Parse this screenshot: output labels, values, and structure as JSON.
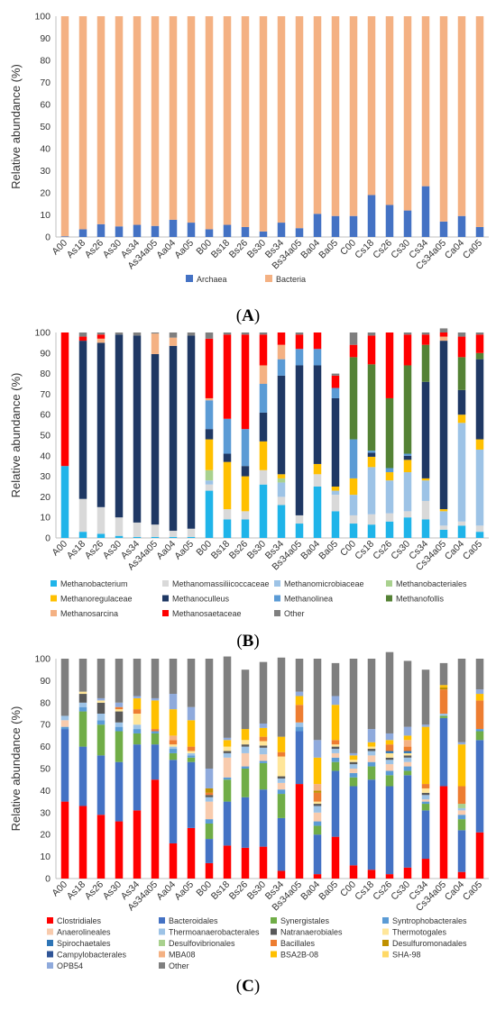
{
  "figure": {
    "colors": {
      "Archaea": "#4472C4",
      "Bacteria": "#F4B183",
      "Methanobacterium": "#1FB4E9",
      "Methanomassiliicoccaceae": "#D9D9D9",
      "Methanomicrobiaceae": "#9DC3E6",
      "Methanobacteriales": "#A9D18E",
      "Methanoregulaceae": "#FFC000",
      "Methanoculleus": "#1F3864",
      "Methanolinea": "#5B9BD5",
      "Methanofollis": "#548235",
      "Methanosarcina": "#F4B183",
      "Methanosaetaceae": "#FF0000",
      "Other": "#7F7F7F",
      "Clostridiales": "#FF0000",
      "Bacteroidales": "#4472C4",
      "Synergistales": "#70AD47",
      "Syntrophobacterales": "#5B9BD5",
      "Anaerolineales": "#F8CBAD",
      "Thermoanaerobacterales": "#9DC3E6",
      "Natranaerobiales": "#595959",
      "Thermotogales": "#FFE699",
      "Spirochaetales": "#2E75B6",
      "Desulfovibrionales": "#A9D18E",
      "Bacillales": "#ED7D31",
      "Desulfuromonadales": "#BF9000",
      "Campylobacterales": "#2F5597",
      "MBA08": "#F4B183",
      "BSA2B-08": "#FFC000",
      "SHA-98": "#FFD966",
      "OPB54": "#8FAADC"
    }
  },
  "chart_data": [
    {
      "panel_label": "(A)",
      "type": "bar",
      "stacked": true,
      "ylabel": "Relative abundance (%)",
      "ylim": [
        0,
        100
      ],
      "yticks": [
        0,
        10,
        20,
        30,
        40,
        50,
        60,
        70,
        80,
        90,
        100
      ],
      "legend_position": "bottom",
      "categories": [
        "A00",
        "As18",
        "As26",
        "As30",
        "As34",
        "As34a05",
        "Aa04",
        "Aa05",
        "B00",
        "Bs18",
        "Bs26",
        "Bs30",
        "Bs34",
        "Bs34a05",
        "Ba04",
        "Ba05",
        "C00",
        "Cs18",
        "Cs26",
        "Cs30",
        "Cs34",
        "Cs34a05",
        "Ca04",
        "Ca05"
      ],
      "series": [
        {
          "name": "Archaea",
          "values": [
            0.3,
            3.5,
            5.8,
            4.8,
            5.5,
            5.0,
            7.8,
            6.5,
            3.5,
            5.5,
            4.5,
            2.5,
            6.5,
            4.0,
            10.5,
            9.5,
            9.5,
            19.0,
            14.5,
            12.0,
            23.0,
            7.0,
            9.5,
            4.5
          ]
        },
        {
          "name": "Bacteria",
          "values": [
            99.7,
            96.5,
            94.2,
            95.2,
            94.5,
            95.0,
            92.2,
            93.5,
            96.5,
            94.5,
            95.5,
            97.5,
            93.5,
            96.0,
            89.5,
            90.5,
            90.5,
            81.0,
            85.5,
            88.0,
            77.0,
            93.0,
            90.5,
            95.5
          ]
        }
      ]
    },
    {
      "panel_label": "(B)",
      "type": "bar",
      "stacked": true,
      "ylabel": "Relative abundance (%)",
      "ylim": [
        0,
        100
      ],
      "yticks": [
        0,
        10,
        20,
        30,
        40,
        50,
        60,
        70,
        80,
        90,
        100
      ],
      "legend_position": "bottom",
      "categories": [
        "A00",
        "As18",
        "As26",
        "As30",
        "As34",
        "As34a05",
        "Aa04",
        "Aa05",
        "B00",
        "Bs18",
        "Bs26",
        "Bs30",
        "Bs34",
        "Bs34a05",
        "Ba04",
        "Ba05",
        "C00",
        "Cs18",
        "Cs26",
        "Cs30",
        "Cs34",
        "Cs34a05",
        "Ca04",
        "Ca05"
      ],
      "series": [
        {
          "name": "Methanobacterium",
          "values": [
            35,
            3,
            2,
            1,
            0.5,
            0.5,
            0.5,
            0.5,
            23,
            9,
            9,
            26,
            16,
            7,
            25,
            13,
            7,
            6.5,
            8,
            10,
            9,
            4,
            6,
            3
          ]
        },
        {
          "name": "Methanomassiliicoccaceae",
          "values": [
            0,
            16,
            13,
            9,
            7,
            6,
            3,
            4,
            3,
            5,
            4,
            7,
            4,
            4,
            6,
            8,
            4,
            5,
            4,
            3,
            9,
            2,
            2,
            3
          ]
        },
        {
          "name": "Methanomicrobiaceae",
          "values": [
            0,
            0,
            0,
            0,
            0,
            0,
            0,
            0,
            2,
            0,
            0,
            0,
            7,
            0,
            0,
            2,
            10,
            23,
            16,
            19,
            10,
            7,
            48,
            37
          ]
        },
        {
          "name": "Methanobacteriales",
          "values": [
            0,
            0,
            0,
            0,
            0,
            0,
            0,
            0,
            5,
            0,
            0,
            0,
            2,
            0,
            0,
            0,
            0,
            0,
            0,
            0,
            0,
            0,
            0,
            0
          ]
        },
        {
          "name": "Methanoregulaceae",
          "values": [
            0,
            0,
            0,
            0,
            0,
            0,
            0,
            0,
            15,
            23,
            17,
            14,
            2,
            0,
            5,
            2,
            8,
            5,
            4,
            6,
            1,
            1,
            4,
            5
          ]
        },
        {
          "name": "Methanoculleus",
          "values": [
            0,
            77,
            80,
            89,
            91,
            83,
            90,
            94,
            5,
            4,
            5,
            14,
            48,
            73,
            48,
            43,
            0,
            2,
            0,
            2,
            47,
            82,
            12,
            39
          ]
        },
        {
          "name": "Methanolinea",
          "values": [
            0,
            0,
            0,
            0,
            0,
            0,
            0,
            0,
            14,
            17,
            18,
            14,
            8,
            8,
            8,
            5,
            19,
            1,
            2,
            1,
            0,
            0,
            0,
            0
          ]
        },
        {
          "name": "Methanofollis",
          "values": [
            0,
            0,
            0,
            0,
            0,
            0,
            0,
            0,
            0,
            0,
            0,
            0,
            0,
            0,
            0,
            0,
            40,
            42,
            34,
            43,
            18,
            0,
            16,
            3
          ]
        },
        {
          "name": "Methanosarcina",
          "values": [
            0,
            0,
            2,
            0,
            0,
            10,
            4,
            0,
            1,
            0,
            0,
            9,
            7,
            0,
            0,
            0,
            0,
            0,
            0,
            0,
            0,
            2,
            0,
            0
          ]
        },
        {
          "name": "Methanosaetaceae",
          "values": [
            65,
            2,
            2,
            0,
            0,
            0,
            0,
            0,
            29,
            41,
            46,
            15,
            6,
            7,
            8,
            6,
            6,
            14,
            32,
            15,
            5,
            2,
            10,
            9
          ]
        },
        {
          "name": "Other",
          "values": [
            0,
            2,
            1,
            1,
            1.5,
            0.5,
            2.5,
            1.5,
            3,
            1,
            1,
            1,
            0,
            1,
            0,
            1,
            6,
            1.5,
            0,
            1,
            1,
            2,
            2,
            1
          ]
        }
      ]
    },
    {
      "panel_label": "(C)",
      "type": "bar",
      "stacked": true,
      "ylabel": "Relative abundance (%)",
      "ylim": [
        0,
        100
      ],
      "yticks": [
        0,
        10,
        20,
        30,
        40,
        50,
        60,
        70,
        80,
        90,
        100
      ],
      "legend_position": "bottom",
      "categories": [
        "A00",
        "As18",
        "As26",
        "As30",
        "As34",
        "As34a05",
        "Aa04",
        "Aa05",
        "B00",
        "Bs18",
        "Bs26",
        "Bs30",
        "Bs34",
        "Bs34a05",
        "Ba04",
        "Ba05",
        "C00",
        "Cs18",
        "Cs26",
        "Cs30",
        "Cs34",
        "Cs34a05",
        "Ca04",
        "Ca05"
      ],
      "series": [
        {
          "name": "Clostridiales",
          "values": [
            35,
            33,
            29,
            26,
            31,
            45,
            16,
            23,
            7,
            15,
            14,
            14.5,
            3.5,
            43,
            2,
            19,
            6,
            4,
            2,
            5,
            9,
            42,
            3,
            21
          ]
        },
        {
          "name": "Bacteroidales",
          "values": [
            33,
            27,
            27,
            27,
            30,
            16,
            38,
            30,
            11,
            20,
            23,
            26,
            24,
            24,
            18,
            30,
            36,
            41,
            40,
            42,
            22,
            31,
            19,
            42
          ]
        },
        {
          "name": "Synergistales",
          "values": [
            0,
            16,
            14,
            14,
            5,
            5,
            3,
            2,
            7,
            10,
            13,
            12,
            11,
            0,
            4,
            4,
            4,
            6,
            5,
            2,
            3,
            1,
            5,
            4
          ]
        },
        {
          "name": "Syntrophobacterales",
          "values": [
            1,
            2,
            2,
            2,
            2,
            1,
            2,
            1,
            2,
            1,
            1,
            1,
            2,
            2,
            2,
            2,
            2,
            2,
            2,
            2,
            1,
            0,
            2,
            1
          ]
        },
        {
          "name": "Anaerolineales",
          "values": [
            3,
            0,
            0,
            0,
            0,
            0,
            0,
            0,
            8,
            9,
            6,
            3,
            3,
            0,
            4,
            2,
            2,
            3,
            3,
            2,
            1,
            0,
            2,
            0
          ]
        },
        {
          "name": "Thermoanaerobacterales",
          "values": [
            2,
            2,
            3,
            2,
            2,
            0,
            1,
            1,
            2,
            2,
            3,
            3,
            2,
            2,
            3,
            2,
            2,
            2,
            2,
            2,
            2,
            1,
            1,
            0
          ]
        },
        {
          "name": "Natranaerobiales",
          "values": [
            0,
            4,
            5,
            5,
            0,
            0,
            0,
            0,
            1,
            1,
            1,
            1,
            1,
            0,
            1,
            1,
            1,
            1,
            1,
            1,
            1,
            0,
            0,
            0
          ]
        },
        {
          "name": "Thermotogales",
          "values": [
            0,
            1,
            1,
            1,
            5,
            0,
            1,
            1,
            0,
            2,
            2,
            2,
            9,
            0,
            1,
            1,
            1,
            1,
            2,
            1,
            2,
            0,
            0,
            0
          ]
        },
        {
          "name": "Spirochaetales",
          "values": [
            0,
            0,
            0,
            0,
            0,
            0,
            0,
            0,
            0,
            0,
            0,
            0,
            0,
            0,
            0,
            0,
            0,
            0,
            1,
            1,
            0,
            0,
            0,
            0
          ]
        },
        {
          "name": "Desulfovibrionales",
          "values": [
            0,
            0,
            0,
            0,
            0,
            0,
            0,
            0,
            0,
            0,
            0,
            0,
            0,
            0,
            0,
            0,
            0,
            0,
            0,
            0,
            0,
            0,
            2,
            0
          ]
        },
        {
          "name": "Bacillales",
          "values": [
            0,
            0,
            0,
            1,
            2,
            1,
            2,
            2,
            1,
            0,
            0,
            2,
            2,
            8,
            4,
            2,
            0,
            0,
            3,
            2,
            2,
            11,
            8,
            13
          ]
        },
        {
          "name": "Desulfuromonadales",
          "values": [
            0,
            0,
            0,
            0,
            0,
            0,
            0,
            0,
            2,
            0,
            0,
            0,
            0,
            0,
            1,
            0,
            0,
            0,
            0,
            0,
            0,
            1,
            0,
            0
          ]
        },
        {
          "name": "Campylobacterales",
          "values": [
            0,
            0,
            0,
            0,
            0,
            0,
            0,
            0,
            0,
            0,
            0,
            0,
            0,
            0,
            0,
            0,
            0,
            0,
            0,
            0,
            0,
            0,
            0,
            0
          ]
        },
        {
          "name": "MBA08",
          "values": [
            0,
            0,
            0,
            0,
            0,
            0,
            2,
            0,
            0,
            0,
            0,
            0,
            0,
            0,
            3,
            0,
            0,
            0,
            0,
            3,
            0,
            0,
            0,
            0
          ]
        },
        {
          "name": "BSA2B-08",
          "values": [
            0,
            0,
            0,
            0,
            5,
            13,
            12,
            12,
            0,
            3,
            5,
            4,
            7,
            4,
            12,
            16,
            2,
            2,
            2,
            2,
            26,
            1,
            19,
            3
          ]
        },
        {
          "name": "SHA-98",
          "values": [
            0,
            0,
            0,
            0,
            0,
            0,
            0,
            0,
            0,
            0,
            0,
            0,
            0,
            0,
            0,
            0,
            0,
            0,
            0,
            0,
            0,
            0,
            0,
            0
          ]
        },
        {
          "name": "OPB54",
          "values": [
            0,
            0,
            1,
            2,
            1,
            1,
            7,
            6,
            9,
            1,
            0,
            2,
            0,
            2,
            8,
            4,
            1,
            6,
            3,
            4,
            1,
            0,
            1,
            2
          ]
        },
        {
          "name": "Other",
          "values": [
            26,
            15,
            18,
            20,
            17,
            18,
            16,
            22,
            50,
            37,
            27,
            28,
            36,
            15,
            37,
            15,
            43,
            32,
            37,
            30,
            25,
            10,
            38,
            14
          ]
        }
      ]
    }
  ]
}
